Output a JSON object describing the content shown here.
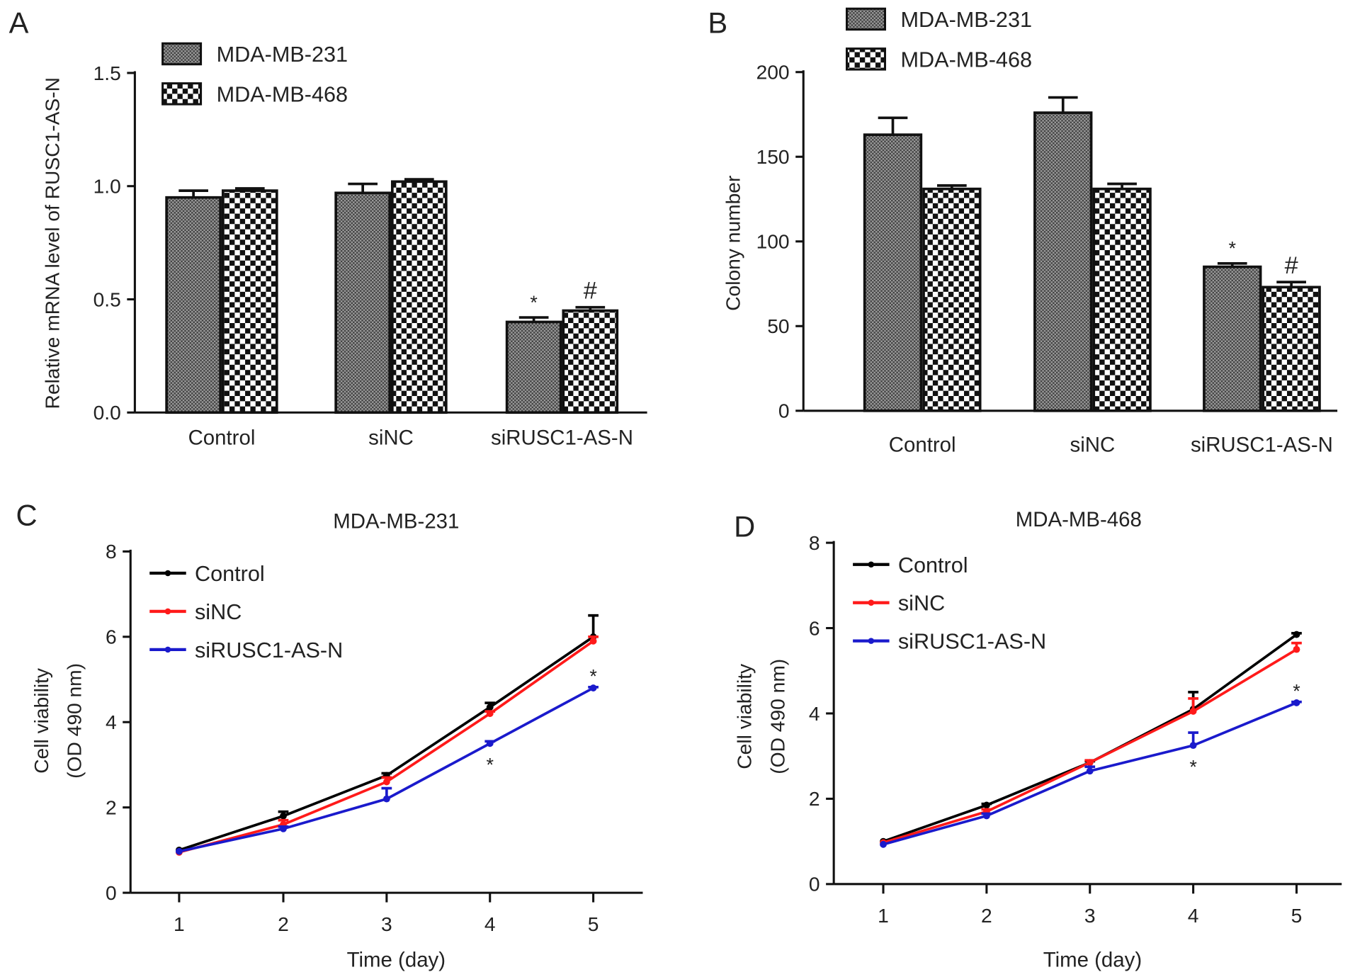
{
  "panels": {
    "A": "A",
    "B": "B",
    "C": "C",
    "D": "D"
  },
  "chart_data": [
    {
      "id": "A",
      "type": "bar",
      "title": "",
      "ylabel": "Relative mRNA level of RUSC1-AS-N",
      "xlabel": "",
      "ylim": [
        0,
        1.5
      ],
      "yticks": [
        "0.0",
        "0.5",
        "1.0",
        "1.5"
      ],
      "yticks_values": [
        0,
        0.5,
        1.0,
        1.5
      ],
      "categories": [
        "Control",
        "siNC",
        "siRUSC1-AS-N"
      ],
      "legend_position": "top-left",
      "series": [
        {
          "name": "MDA-MB-231",
          "values": [
            0.95,
            0.97,
            0.4
          ],
          "errors": [
            0.03,
            0.04,
            0.02
          ],
          "annotations": [
            "",
            "",
            "*"
          ]
        },
        {
          "name": "MDA-MB-468",
          "values": [
            0.98,
            1.02,
            0.45
          ],
          "errors": [
            0.01,
            0.01,
            0.015
          ],
          "annotations": [
            "",
            "",
            "#"
          ]
        }
      ]
    },
    {
      "id": "B",
      "type": "bar",
      "title": "",
      "ylabel": "Colony number",
      "xlabel": "",
      "ylim": [
        0,
        200
      ],
      "yticks": [
        "0",
        "50",
        "100",
        "150",
        "200"
      ],
      "yticks_values": [
        0,
        50,
        100,
        150,
        200
      ],
      "categories": [
        "Control",
        "siNC",
        "siRUSC1-AS-N"
      ],
      "legend_position": "top-left",
      "series": [
        {
          "name": "MDA-MB-231",
          "values": [
            163,
            176,
            85
          ],
          "errors": [
            10,
            9,
            2
          ],
          "annotations": [
            "",
            "",
            "*"
          ]
        },
        {
          "name": "MDA-MB-468",
          "values": [
            131,
            131,
            73
          ],
          "errors": [
            2,
            3,
            3
          ],
          "annotations": [
            "",
            "",
            "#"
          ]
        }
      ]
    },
    {
      "id": "C",
      "type": "line",
      "title": "MDA-MB-231",
      "ylabel": [
        "Cell viability",
        "(OD 490 nm)"
      ],
      "xlabel": "Time (day)",
      "x": [
        1,
        2,
        3,
        4,
        5
      ],
      "xticks": [
        "1",
        "2",
        "3",
        "4",
        "5"
      ],
      "ylim": [
        0,
        8
      ],
      "yticks": [
        "0",
        "2",
        "4",
        "6",
        "8"
      ],
      "yticks_values": [
        0,
        2,
        4,
        6,
        8
      ],
      "legend_position": "top-left",
      "series": [
        {
          "name": "Control",
          "color": "#000000",
          "marker": "diamond",
          "values": [
            1.0,
            1.8,
            2.75,
            4.35,
            6.0
          ],
          "errors": [
            0,
            0.1,
            0.05,
            0.1,
            0.5
          ]
        },
        {
          "name": "siNC",
          "color": "#ff1a1a",
          "marker": "square",
          "values": [
            0.95,
            1.6,
            2.6,
            4.2,
            5.9
          ],
          "errors": [
            0,
            0.1,
            0.1,
            0.05,
            0.1
          ]
        },
        {
          "name": "siRUSC1-AS-N",
          "color": "#1a1acc",
          "marker": "triangle",
          "values": [
            0.97,
            1.5,
            2.2,
            3.5,
            4.8
          ],
          "errors": [
            0,
            0.05,
            0.25,
            0.05,
            0.02
          ]
        }
      ],
      "annotations": [
        {
          "x": 4,
          "text": "*",
          "position": "below"
        },
        {
          "x": 5,
          "text": "*",
          "position": "above"
        }
      ]
    },
    {
      "id": "D",
      "type": "line",
      "title": "MDA-MB-468",
      "ylabel": [
        "Cell viability",
        "(OD 490 nm)"
      ],
      "xlabel": "Time (day)",
      "x": [
        1,
        2,
        3,
        4,
        5
      ],
      "xticks": [
        "1",
        "2",
        "3",
        "4",
        "5"
      ],
      "ylim": [
        0,
        8
      ],
      "yticks": [
        "0",
        "2",
        "4",
        "6",
        "8"
      ],
      "yticks_values": [
        0,
        2,
        4,
        6,
        8
      ],
      "legend_position": "top-left",
      "series": [
        {
          "name": "Control",
          "color": "#000000",
          "marker": "diamond",
          "values": [
            1.0,
            1.85,
            2.85,
            4.1,
            5.85
          ],
          "errors": [
            0,
            0.03,
            0.03,
            0.4,
            0.03
          ]
        },
        {
          "name": "siNC",
          "color": "#ff1a1a",
          "marker": "square",
          "values": [
            0.97,
            1.7,
            2.85,
            4.05,
            5.5
          ],
          "errors": [
            0,
            0.05,
            0.05,
            0.3,
            0.15
          ]
        },
        {
          "name": "siRUSC1-AS-N",
          "color": "#1a1acc",
          "marker": "triangle",
          "values": [
            0.93,
            1.6,
            2.65,
            3.25,
            4.25
          ],
          "errors": [
            0,
            0.05,
            0.1,
            0.3,
            0.02
          ]
        }
      ],
      "annotations": [
        {
          "x": 4,
          "text": "*",
          "position": "below"
        },
        {
          "x": 5,
          "text": "*",
          "position": "above"
        }
      ]
    }
  ]
}
